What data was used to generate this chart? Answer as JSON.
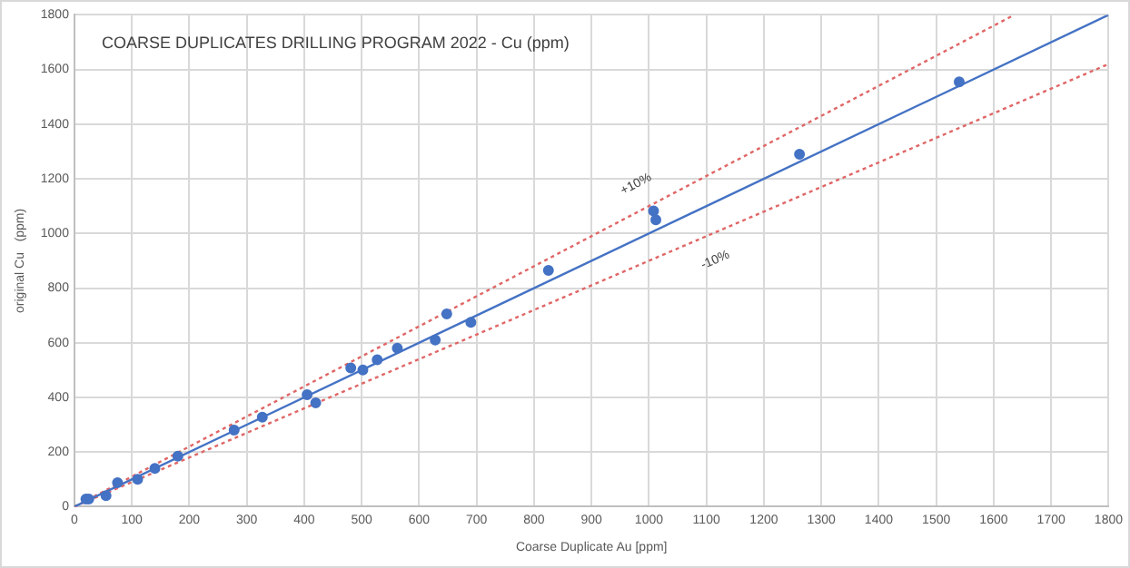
{
  "chart_data": {
    "type": "scatter",
    "title": "COARSE DUPLICATES DRILLING PROGRAM 2022 - Cu (ppm)",
    "xlabel": "Coarse Duplicate Au [ppm]",
    "ylabel": "original Cu   (ppm)",
    "xlim": [
      0,
      1800
    ],
    "ylim": [
      0,
      1800
    ],
    "xticks": [
      0,
      100,
      200,
      300,
      400,
      500,
      600,
      700,
      800,
      900,
      1000,
      1100,
      1200,
      1300,
      1400,
      1500,
      1600,
      1700,
      1800
    ],
    "yticks": [
      0,
      200,
      400,
      600,
      800,
      1000,
      1200,
      1400,
      1600,
      1800
    ],
    "grid": true,
    "legend": false,
    "series": [
      {
        "type": "scatter",
        "color": "#4472c4",
        "marker": "circle",
        "x": [
          20,
          25,
          55,
          75,
          110,
          140,
          180,
          278,
          327,
          405,
          420,
          481,
          502,
          527,
          562,
          628,
          648,
          690,
          825,
          1008,
          1012,
          1262,
          1540
        ],
        "values": [
          28,
          28,
          40,
          88,
          100,
          140,
          185,
          280,
          328,
          410,
          380,
          508,
          500,
          538,
          580,
          610,
          705,
          675,
          865,
          1082,
          1050,
          1290,
          1555
        ]
      },
      {
        "type": "line",
        "color": "#4472c4",
        "marker": "none",
        "line_style": "solid",
        "x": [
          0,
          1800
        ],
        "values": [
          0,
          1800
        ]
      },
      {
        "type": "line",
        "name": "+10%",
        "color": "#e06666",
        "marker": "none",
        "line_style": "dotted",
        "x": [
          0,
          1636
        ],
        "values": [
          0,
          1800
        ]
      },
      {
        "type": "line",
        "name": "-10%",
        "color": "#e06666",
        "marker": "none",
        "line_style": "dotted",
        "x": [
          0,
          1800
        ],
        "values": [
          0,
          1620
        ]
      }
    ]
  }
}
